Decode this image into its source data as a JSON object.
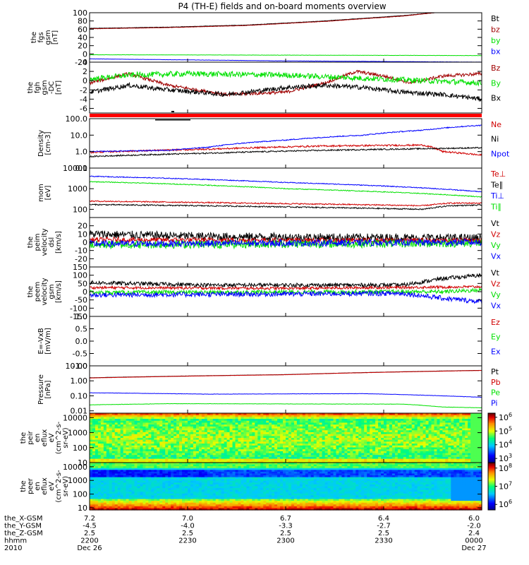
{
  "title": "P4 (TH-E) fields and on-board moments overview",
  "colors": {
    "black": "#000000",
    "red": "#d00000",
    "green": "#00e000",
    "blue": "#0000ff",
    "darkred": "#a00000",
    "bar": "#ff0000"
  },
  "chart_data": [
    {
      "type": "line",
      "id": "fgs",
      "ylabel": [
        "the",
        "fgs",
        "gsm",
        "[nT]"
      ],
      "ylim": [
        -20,
        100
      ],
      "yticks": [
        {
          "v": -20,
          "t": "-20"
        },
        {
          "v": 0,
          "t": "0"
        },
        {
          "v": 20,
          "t": "20"
        },
        {
          "v": 40,
          "t": "40"
        },
        {
          "v": 60,
          "t": "60"
        },
        {
          "v": 80,
          "t": "80"
        },
        {
          "v": 100,
          "t": "100"
        }
      ],
      "series": [
        {
          "name": "Bt",
          "color": "black",
          "noise": 0.4,
          "pts": [
            [
              0,
              62
            ],
            [
              0.2,
              65
            ],
            [
              0.4,
              70
            ],
            [
              0.6,
              80
            ],
            [
              0.8,
              93
            ],
            [
              0.88,
              100
            ]
          ]
        },
        {
          "name": "bz",
          "color": "darkred",
          "noise": 0.4,
          "pts": [
            [
              0,
              61
            ],
            [
              0.2,
              64
            ],
            [
              0.4,
              69
            ],
            [
              0.6,
              79
            ],
            [
              0.8,
              92
            ],
            [
              0.88,
              100
            ]
          ]
        },
        {
          "name": "by",
          "color": "green",
          "noise": 0.3,
          "pts": [
            [
              0,
              -2
            ],
            [
              0.5,
              -3
            ],
            [
              1,
              -4
            ]
          ]
        },
        {
          "name": "bx",
          "color": "blue",
          "noise": 0.3,
          "pts": [
            [
              0,
              -12
            ],
            [
              0.2,
              -14
            ],
            [
              0.5,
              -17
            ],
            [
              1,
              -20
            ]
          ]
        }
      ]
    },
    {
      "type": "line",
      "id": "fgh",
      "ylabel": [
        "the",
        "fgh",
        "gsm",
        "-DC",
        "[nT]"
      ],
      "ylim": [
        -7,
        4
      ],
      "yticks": [
        {
          "v": -6,
          "t": "-6"
        },
        {
          "v": -4,
          "t": "-4"
        },
        {
          "v": -2,
          "t": "-2"
        },
        {
          "v": 0,
          "t": "0"
        },
        {
          "v": 2,
          "t": "2"
        },
        {
          "v": 4,
          "t": "4"
        }
      ],
      "series": [
        {
          "name": "Bz",
          "color": "darkred",
          "noise": 0.35,
          "pts": [
            [
              0,
              -0.5
            ],
            [
              0.1,
              1.5
            ],
            [
              0.2,
              -1
            ],
            [
              0.35,
              -3
            ],
            [
              0.5,
              -2.5
            ],
            [
              0.6,
              -0.5
            ],
            [
              0.68,
              2
            ],
            [
              0.75,
              1
            ],
            [
              0.82,
              -0.5
            ],
            [
              0.9,
              1
            ],
            [
              1,
              1.5
            ]
          ]
        },
        {
          "name": "By",
          "color": "green",
          "noise": 0.6,
          "pts": [
            [
              0,
              0.3
            ],
            [
              0.1,
              1.2
            ],
            [
              0.25,
              1.5
            ],
            [
              0.5,
              1.2
            ],
            [
              0.7,
              0.5
            ],
            [
              0.85,
              0
            ],
            [
              1,
              -0.5
            ]
          ]
        },
        {
          "name": "Bx",
          "color": "black",
          "noise": 0.5,
          "pts": [
            [
              0,
              -2.5
            ],
            [
              0.1,
              -1
            ],
            [
              0.2,
              -2
            ],
            [
              0.35,
              -3
            ],
            [
              0.5,
              -1.5
            ],
            [
              0.6,
              -1
            ],
            [
              0.7,
              -1.5
            ],
            [
              0.8,
              -2.5
            ],
            [
              0.9,
              -3
            ],
            [
              1,
              -4
            ]
          ]
        }
      ]
    },
    {
      "type": "line",
      "id": "density",
      "ylabel": [
        "Density",
        "[cm-3]"
      ],
      "log": true,
      "ylim": [
        0.1,
        100
      ],
      "yticks": [
        {
          "v": 0.1,
          "t": "0.1"
        },
        {
          "v": 1,
          "t": "1.0"
        },
        {
          "v": 10,
          "t": "10.0"
        },
        {
          "v": 100,
          "t": "100.0"
        }
      ],
      "series": [
        {
          "name": "Ne",
          "color": "red",
          "noise": 0.05,
          "pts": [
            [
              0,
              0.9
            ],
            [
              0.3,
              1.4
            ],
            [
              0.6,
              2.2
            ],
            [
              0.85,
              2.5
            ],
            [
              0.9,
              1.0
            ],
            [
              1,
              0.6
            ]
          ]
        },
        {
          "name": "Ni",
          "color": "black",
          "noise": 0.04,
          "pts": [
            [
              0,
              0.5
            ],
            [
              0.3,
              0.8
            ],
            [
              0.6,
              1.2
            ],
            [
              0.85,
              1.5
            ],
            [
              1,
              1.7
            ]
          ]
        },
        {
          "name": "Npot",
          "color": "blue",
          "noise": 0.03,
          "pts": [
            [
              0,
              1.0
            ],
            [
              0.2,
              1.2
            ],
            [
              0.3,
              1.8
            ],
            [
              0.5,
              5
            ],
            [
              0.7,
              10
            ],
            [
              0.85,
              20
            ],
            [
              1,
              40
            ]
          ]
        }
      ]
    },
    {
      "type": "line",
      "id": "mom",
      "ylabel": [
        "mom",
        "[eV]"
      ],
      "log": true,
      "ylim": [
        40,
        10000
      ],
      "yticks": [
        {
          "v": 100,
          "t": "100"
        },
        {
          "v": 1000,
          "t": "1000"
        },
        {
          "v": 10000,
          "t": "10000"
        }
      ],
      "series": [
        {
          "name": "Te⊥",
          "color": "red",
          "noise": 0.03,
          "pts": [
            [
              0,
              250
            ],
            [
              0.4,
              200
            ],
            [
              0.85,
              150
            ],
            [
              0.92,
              200
            ],
            [
              1,
              200
            ]
          ]
        },
        {
          "name": "Te∥",
          "color": "black",
          "noise": 0.03,
          "pts": [
            [
              0,
              170
            ],
            [
              0.4,
              140
            ],
            [
              0.85,
              100
            ],
            [
              0.92,
              150
            ],
            [
              1,
              160
            ]
          ]
        },
        {
          "name": "Ti⊥",
          "color": "blue",
          "noise": 0.02,
          "pts": [
            [
              0,
              4000
            ],
            [
              0.5,
              2000
            ],
            [
              1,
              700
            ]
          ]
        },
        {
          "name": "Ti∥",
          "color": "green",
          "noise": 0.02,
          "pts": [
            [
              0,
              2200
            ],
            [
              0.5,
              1000
            ],
            [
              1,
              400
            ]
          ]
        }
      ]
    },
    {
      "type": "line",
      "id": "peim",
      "ylabel": [
        "the",
        "peim",
        "velocity",
        "dsl",
        "[km/s]"
      ],
      "ylim": [
        -30,
        30
      ],
      "yticks": [
        {
          "v": -20,
          "t": "-20"
        },
        {
          "v": -10,
          "t": "-10"
        },
        {
          "v": 0,
          "t": "0"
        },
        {
          "v": 10,
          "t": "10"
        },
        {
          "v": 20,
          "t": "20"
        }
      ],
      "series": [
        {
          "name": "Vt",
          "color": "black",
          "noise": 5,
          "pts": [
            [
              0,
              10
            ],
            [
              0.3,
              7
            ],
            [
              0.6,
              6
            ],
            [
              1,
              5
            ]
          ]
        },
        {
          "name": "Vz",
          "color": "red",
          "noise": 3,
          "pts": [
            [
              0,
              3
            ],
            [
              1,
              2
            ]
          ]
        },
        {
          "name": "Vy",
          "color": "green",
          "noise": 5,
          "pts": [
            [
              0,
              -3
            ],
            [
              1,
              -1
            ]
          ]
        },
        {
          "name": "Vx",
          "color": "blue",
          "noise": 4,
          "pts": [
            [
              0,
              -2
            ],
            [
              1,
              0
            ]
          ]
        }
      ]
    },
    {
      "type": "line",
      "id": "peem",
      "ylabel": [
        "the",
        "peem",
        "velocity",
        "gsm",
        "[km/s]"
      ],
      "ylim": [
        -150,
        150
      ],
      "yticks": [
        {
          "v": -150,
          "t": "-150"
        },
        {
          "v": -100,
          "t": "-100"
        },
        {
          "v": -50,
          "t": "-50"
        },
        {
          "v": 0,
          "t": "0"
        },
        {
          "v": 50,
          "t": "50"
        },
        {
          "v": 100,
          "t": "100"
        },
        {
          "v": 150,
          "t": "150"
        }
      ],
      "series": [
        {
          "name": "Vt",
          "color": "black",
          "noise": 12,
          "pts": [
            [
              0,
              55
            ],
            [
              0.3,
              40
            ],
            [
              0.8,
              40
            ],
            [
              0.9,
              80
            ],
            [
              1,
              100
            ]
          ]
        },
        {
          "name": "Vz",
          "color": "red",
          "noise": 8,
          "pts": [
            [
              0,
              25
            ],
            [
              0.5,
              20
            ],
            [
              1,
              30
            ]
          ]
        },
        {
          "name": "Vy",
          "color": "green",
          "noise": 12,
          "pts": [
            [
              0,
              -5
            ],
            [
              0.9,
              0
            ],
            [
              1,
              10
            ]
          ]
        },
        {
          "name": "Vx",
          "color": "blue",
          "noise": 15,
          "pts": [
            [
              0,
              -20
            ],
            [
              0.8,
              -10
            ],
            [
              0.9,
              -40
            ],
            [
              1,
              -60
            ]
          ]
        }
      ]
    },
    {
      "type": "line",
      "id": "efield",
      "ylabel": [
        "E=-VxB",
        "[mV/m]"
      ],
      "ylim": [
        -1,
        1
      ],
      "yticks": [
        {
          "v": -1,
          "t": "-1.0"
        },
        {
          "v": -0.5,
          "t": "-0.5"
        },
        {
          "v": 0,
          "t": "0.0"
        },
        {
          "v": 0.5,
          "t": "0.5"
        },
        {
          "v": 1,
          "t": "1.0"
        }
      ],
      "series": [
        {
          "name": "Ez",
          "color": "red",
          "pts": []
        },
        {
          "name": "Ey",
          "color": "green",
          "pts": []
        },
        {
          "name": "Ex",
          "color": "blue",
          "pts": []
        }
      ]
    },
    {
      "type": "line",
      "id": "pressure",
      "ylabel": [
        "Pressure",
        "[nPa]"
      ],
      "log": true,
      "ylim": [
        0.007,
        10
      ],
      "yticks": [
        {
          "v": 0.01,
          "t": "0.01"
        },
        {
          "v": 0.1,
          "t": "0.10"
        },
        {
          "v": 1,
          "t": "1.00"
        },
        {
          "v": 10,
          "t": "10.00"
        }
      ],
      "series": [
        {
          "name": "Pt",
          "color": "black",
          "noise": 0.005,
          "pts": [
            [
              0,
              1.6
            ],
            [
              0.5,
              2.6
            ],
            [
              1,
              5
            ]
          ]
        },
        {
          "name": "Pb",
          "color": "red",
          "noise": 0.005,
          "pts": [
            [
              0,
              1.55
            ],
            [
              0.5,
              2.55
            ],
            [
              1,
              4.9
            ]
          ]
        },
        {
          "name": "Pe",
          "color": "green",
          "noise": 0.01,
          "pts": [
            [
              0,
              0.025
            ],
            [
              0.2,
              0.03
            ],
            [
              0.8,
              0.028
            ],
            [
              0.9,
              0.018
            ],
            [
              1,
              0.016
            ]
          ]
        },
        {
          "name": "Pi",
          "color": "blue",
          "noise": 0.01,
          "pts": [
            [
              0,
              0.16
            ],
            [
              0.3,
              0.13
            ],
            [
              0.7,
              0.14
            ],
            [
              0.8,
              0.12
            ],
            [
              1,
              0.08
            ]
          ]
        }
      ]
    },
    {
      "type": "heatmap",
      "id": "peir",
      "ylabel": [
        "the",
        "peir",
        "en",
        "eflux",
        "eV",
        "(cm^2-s-",
        "sr-eV)"
      ],
      "log": true,
      "ylim": [
        10,
        20000
      ],
      "yticks": [
        {
          "v": 10,
          "t": "10"
        },
        {
          "v": 100,
          "t": "100"
        },
        {
          "v": 1000,
          "t": "1000"
        },
        {
          "v": 10000,
          "t": "10000"
        }
      ],
      "colorbar": {
        "log": true,
        "range": [
          500,
          2000000
        ],
        "ticks": [
          {
            "v": 1000,
            "e": "3"
          },
          {
            "v": 10000,
            "e": "4"
          },
          {
            "v": 100000,
            "e": "5"
          },
          {
            "v": 1000000,
            "e": "6"
          }
        ]
      }
    },
    {
      "type": "heatmap",
      "id": "peer",
      "ylabel": [
        "the",
        "peer",
        "en",
        "eflux",
        "eV",
        "(cm^2-s-",
        "sr-eV)"
      ],
      "log": true,
      "ylim": [
        7,
        20000
      ],
      "yticks": [
        {
          "v": 10,
          "t": "10"
        },
        {
          "v": 100,
          "t": "100"
        },
        {
          "v": 1000,
          "t": "1000"
        },
        {
          "v": 10000,
          "t": "10000"
        }
      ],
      "colorbar": {
        "log": true,
        "range": [
          500000,
          200000000
        ],
        "ticks": [
          {
            "v": 1000000,
            "e": "6"
          },
          {
            "v": 10000000,
            "e": "7"
          },
          {
            "v": 100000000,
            "e": "8"
          }
        ]
      }
    }
  ],
  "xaxis": {
    "tick_fracs": [
      0,
      0.25,
      0.5,
      0.75,
      1
    ],
    "rows": [
      {
        "label": "the_X-GSM",
        "values": [
          "7.2",
          "7.0",
          "6.7",
          "6.4",
          "6.0"
        ]
      },
      {
        "label": "the_Y-GSM",
        "values": [
          "-4.5",
          "-4.0",
          "-3.3",
          "-2.7",
          "-2.0"
        ]
      },
      {
        "label": "the_Z-GSM",
        "values": [
          "2.5",
          "2.5",
          "2.5",
          "2.5",
          "2.4"
        ]
      },
      {
        "label": "hhmm",
        "values": [
          "2200",
          "2230",
          "2300",
          "2330",
          "0000"
        ]
      },
      {
        "label": "2010",
        "values": [
          "Dec 26",
          "",
          "",
          "",
          "Dec 27"
        ]
      }
    ]
  }
}
